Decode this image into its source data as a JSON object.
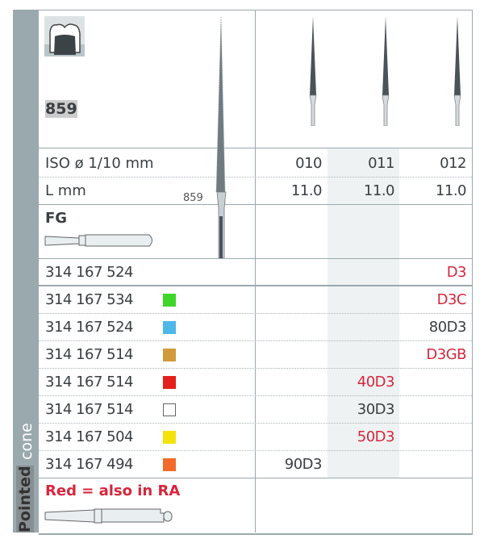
{
  "sidebar": {
    "label_top": "cone",
    "label_bottom": "Pointed"
  },
  "product": {
    "number": "859",
    "shank": "FG",
    "bur_label": "859"
  },
  "specs": {
    "iso_label": "ISO ø 1/10 mm",
    "length_label": "L mm",
    "columns": [
      {
        "iso": "010",
        "length": "11.0"
      },
      {
        "iso": "011",
        "length": "11.0"
      },
      {
        "iso": "012",
        "length": "11.0"
      }
    ]
  },
  "rows": [
    {
      "code": "314 167 524",
      "color": null,
      "col": 2,
      "grit": "D3",
      "red": true
    },
    {
      "code": "314 167 534",
      "color": "#3fd62a",
      "col": 2,
      "grit": "D3C",
      "red": true
    },
    {
      "code": "314 167 524",
      "color": "#4fb6e8",
      "col": 2,
      "grit": "80D3",
      "red": false
    },
    {
      "code": "314 167 514",
      "color": "#d19a3a",
      "col": 2,
      "grit": "D3GB",
      "red": true
    },
    {
      "code": "314 167 514",
      "color": "#e3201b",
      "col": 1,
      "grit": "40D3",
      "red": true
    },
    {
      "code": "314 167 514",
      "color": "#ffffff",
      "col": 1,
      "grit": "30D3",
      "red": false
    },
    {
      "code": "314 167 504",
      "color": "#f4e20c",
      "col": 1,
      "grit": "50D3",
      "red": true
    },
    {
      "code": "314 167 494",
      "color": "#f26b2a",
      "col": 0,
      "grit": "90D3",
      "red": false
    }
  ],
  "note": "Red = also in RA",
  "colors": {
    "red": "#d7263d",
    "sidebar": "#9aa9ae"
  }
}
